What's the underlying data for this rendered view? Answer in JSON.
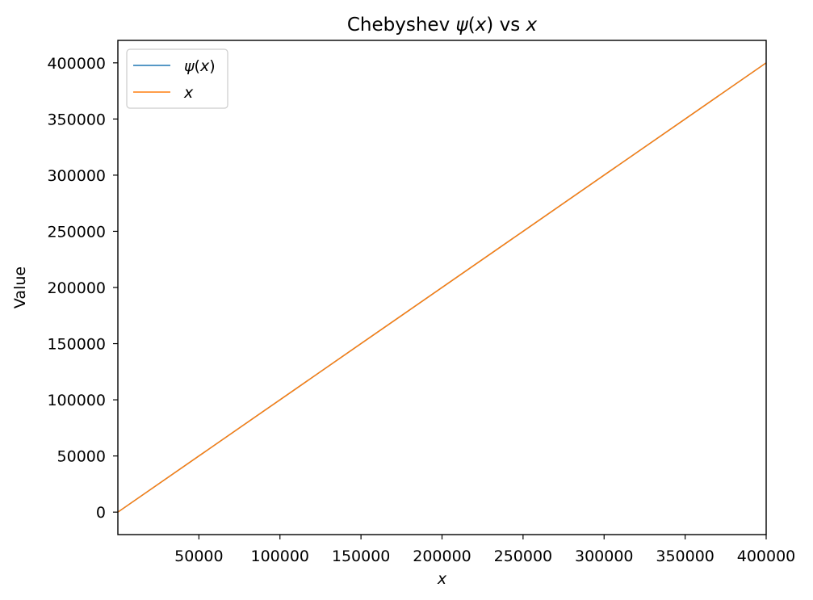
{
  "chart_data": {
    "type": "line",
    "title": {
      "prefix": "Chebyshev ",
      "sym1": "ψ",
      "mid": "(",
      "sym2": "x",
      "suffix": ") vs ",
      "sym3": "x"
    },
    "xlabel": "x",
    "ylabel": "Value",
    "xlim": [
      0,
      400000
    ],
    "ylim": [
      -20000,
      420000
    ],
    "xticks": [
      50000,
      100000,
      150000,
      200000,
      250000,
      300000,
      350000,
      400000
    ],
    "xtick_labels": [
      "50000",
      "100000",
      "150000",
      "200000",
      "250000",
      "300000",
      "350000",
      "400000"
    ],
    "yticks": [
      0,
      50000,
      100000,
      150000,
      200000,
      250000,
      300000,
      350000,
      400000
    ],
    "ytick_labels": [
      "0",
      "50000",
      "100000",
      "150000",
      "200000",
      "250000",
      "300000",
      "350000",
      "400000"
    ],
    "grid": false,
    "legend_position": "top-left",
    "series": [
      {
        "name": "ψ(x)",
        "legend_parts": [
          "ψ",
          "(",
          "x",
          ")"
        ],
        "color": "#1f77b4",
        "x": [
          0,
          50000,
          100000,
          150000,
          200000,
          250000,
          300000,
          350000,
          400000
        ],
        "y": [
          0,
          50000,
          100000,
          150000,
          200000,
          250000,
          300000,
          350000,
          400000
        ]
      },
      {
        "name": "x",
        "legend_parts": [
          "x"
        ],
        "color": "#ff7f0e",
        "x": [
          0,
          50000,
          100000,
          150000,
          200000,
          250000,
          300000,
          350000,
          400000
        ],
        "y": [
          0,
          50000,
          100000,
          150000,
          200000,
          250000,
          300000,
          350000,
          400000
        ]
      }
    ]
  }
}
